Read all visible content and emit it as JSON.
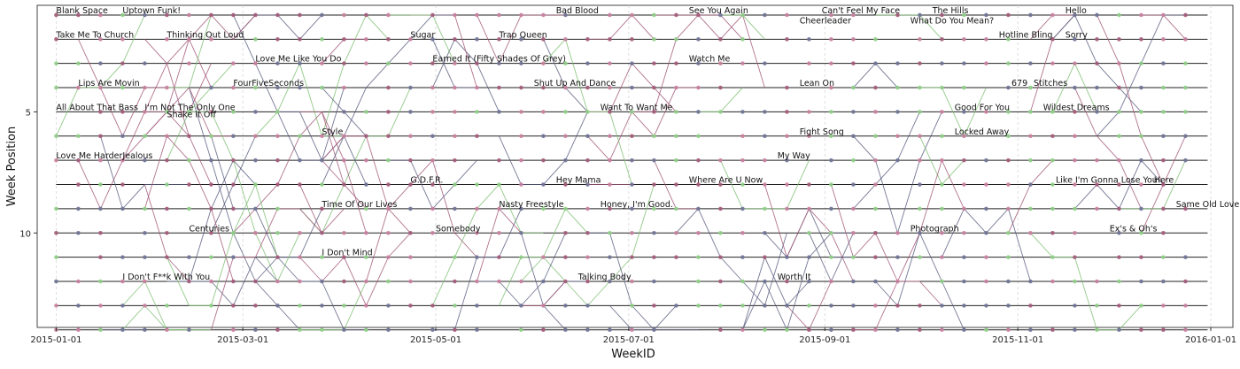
{
  "chart_data": {
    "type": "line",
    "title": "",
    "xlabel": "WeekID",
    "ylabel": "Week Position",
    "x_range": [
      "2014-12-26",
      "2016-01-08"
    ],
    "y_range": [
      0.6,
      13.9
    ],
    "y_inverted": true,
    "grid": true,
    "x_ticks": [
      "2015-01-01",
      "2015-03-01",
      "2015-05-01",
      "2015-07-01",
      "2015-09-01",
      "2015-11-01",
      "2016-01-01"
    ],
    "y_ticks": [
      5,
      10
    ],
    "position_levels": [
      1,
      2,
      3,
      4,
      5,
      6,
      7,
      8,
      9,
      10,
      11,
      12,
      13,
      14
    ],
    "marker_colors": [
      "#c97fa0",
      "#8fcf86",
      "#6f7396",
      "#a35a7a"
    ],
    "line_colors": [
      "#a35a7a",
      "#7fbf73",
      "#5c5f80"
    ],
    "songs": [
      {
        "title": "Blank Space",
        "date": "2015-01-01",
        "position": 1
      },
      {
        "title": "Uptown Funk!",
        "date": "2015-01-22",
        "position": 1
      },
      {
        "title": "Bad Blood",
        "date": "2015-06-08",
        "position": 1
      },
      {
        "title": "See You Again",
        "date": "2015-07-20",
        "position": 1
      },
      {
        "title": "Can't Feel My Face",
        "date": "2015-08-31",
        "position": 1
      },
      {
        "title": "The Hills",
        "date": "2015-10-05",
        "position": 1
      },
      {
        "title": "Hello",
        "date": "2015-11-16",
        "position": 1
      },
      {
        "title": "Cheerleader",
        "date": "2015-08-24",
        "position": 1.42
      },
      {
        "title": "What Do You Mean?",
        "date": "2015-09-28",
        "position": 1.42
      },
      {
        "title": "Take Me To Church",
        "date": "2015-01-01",
        "position": 2
      },
      {
        "title": "Thinking Out Loud",
        "date": "2015-02-05",
        "position": 2
      },
      {
        "title": "Sugar",
        "date": "2015-04-23",
        "position": 2
      },
      {
        "title": "Trap Queen",
        "date": "2015-05-21",
        "position": 2
      },
      {
        "title": "Hotline Bling",
        "date": "2015-10-26",
        "position": 2
      },
      {
        "title": "Sorry",
        "date": "2015-11-16",
        "position": 2
      },
      {
        "title": "Love Me Like You Do",
        "date": "2015-03-05",
        "position": 3
      },
      {
        "title": "Earned It (Fifty Shades Of Grey)",
        "date": "2015-04-30",
        "position": 3
      },
      {
        "title": "Watch Me",
        "date": "2015-07-20",
        "position": 3
      },
      {
        "title": "Lips Are Movin",
        "date": "2015-01-08",
        "position": 4
      },
      {
        "title": "FourFiveSeconds",
        "date": "2015-02-26",
        "position": 4
      },
      {
        "title": "Shut Up And Dance",
        "date": "2015-06-01",
        "position": 4
      },
      {
        "title": "Lean On",
        "date": "2015-08-24",
        "position": 4
      },
      {
        "title": "679",
        "date": "2015-10-30",
        "position": 4
      },
      {
        "title": "Stitches",
        "date": "2015-11-06",
        "position": 4
      },
      {
        "title": "All About That Bass",
        "date": "2015-01-01",
        "position": 5
      },
      {
        "title": "I'm Not The Only One",
        "date": "2015-01-29",
        "position": 5
      },
      {
        "title": "Want To Want Me",
        "date": "2015-06-22",
        "position": 5
      },
      {
        "title": "Good For You",
        "date": "2015-10-12",
        "position": 5
      },
      {
        "title": "Wildest Dreams",
        "date": "2015-11-09",
        "position": 5
      },
      {
        "title": "Shake It Off",
        "date": "2015-02-05",
        "position": 5.3
      },
      {
        "title": "Style",
        "date": "2015-03-26",
        "position": 6
      },
      {
        "title": "Fight Song",
        "date": "2015-08-24",
        "position": 6
      },
      {
        "title": "Locked Away",
        "date": "2015-10-12",
        "position": 6
      },
      {
        "title": "Love Me Harder",
        "date": "2015-01-01",
        "position": 7
      },
      {
        "title": "Jealous",
        "date": "2015-01-22",
        "position": 7
      },
      {
        "title": "My Way",
        "date": "2015-08-17",
        "position": 7
      },
      {
        "title": "G.D.F.R.",
        "date": "2015-04-23",
        "position": 8
      },
      {
        "title": "Hey Mama",
        "date": "2015-06-08",
        "position": 8
      },
      {
        "title": "Where Are U Now",
        "date": "2015-07-20",
        "position": 8
      },
      {
        "title": "Like I'm Gonna Lose You",
        "date": "2015-11-13",
        "position": 8
      },
      {
        "title": "Here",
        "date": "2015-12-14",
        "position": 8
      },
      {
        "title": "Time Of Our Lives",
        "date": "2015-03-26",
        "position": 9
      },
      {
        "title": "Nasty Freestyle",
        "date": "2015-05-21",
        "position": 9
      },
      {
        "title": "Honey, I'm Good.",
        "date": "2015-06-22",
        "position": 9
      },
      {
        "title": "Same Old Love",
        "date": "2015-12-21",
        "position": 9
      },
      {
        "title": "Centuries",
        "date": "2015-02-12",
        "position": 10
      },
      {
        "title": "Somebody",
        "date": "2015-05-01",
        "position": 10
      },
      {
        "title": "Photograph",
        "date": "2015-09-28",
        "position": 10
      },
      {
        "title": "Ex's & Oh's",
        "date": "2015-11-30",
        "position": 10
      },
      {
        "title": "I Don't Mind",
        "date": "2015-03-26",
        "position": 11
      },
      {
        "title": "I Don't F**k With You",
        "date": "2015-01-22",
        "position": 12
      },
      {
        "title": "Talking Body",
        "date": "2015-06-15",
        "position": 12
      },
      {
        "title": "Worth It",
        "date": "2015-08-17",
        "position": 12
      }
    ]
  }
}
